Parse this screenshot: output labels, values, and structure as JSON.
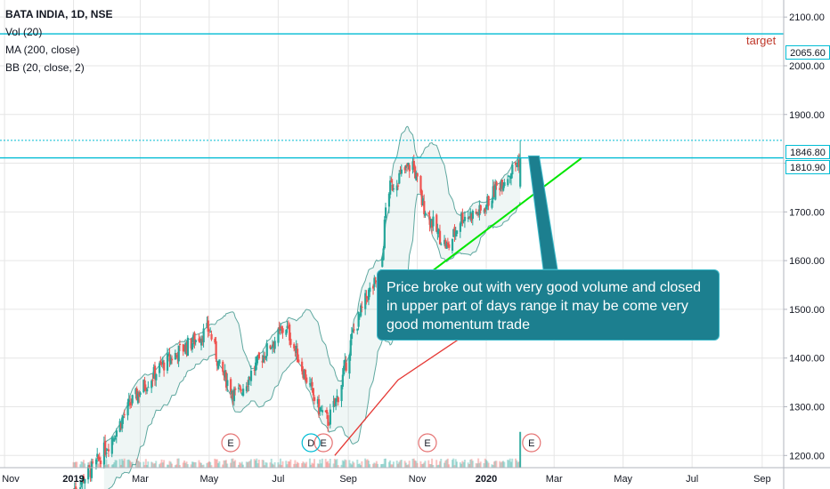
{
  "legend": {
    "title": "BATA INDIA, 1D, NSE",
    "lines": [
      "Vol (20)",
      "MA (200, close)",
      "BB (20, close, 2)"
    ]
  },
  "annotations": {
    "callout": "Price broke out with very good volume and closed in upper part of days range it may be come very good momentum trade",
    "target_label": "target",
    "earnings_marker": "E",
    "dividend_marker": "D"
  },
  "price_tags": {
    "target": "2065.60",
    "high": "1846.80",
    "breakout": "1810.90"
  },
  "colors": {
    "up": "#26a69a",
    "down": "#ef5350",
    "ma": "#e53935",
    "level": "#00bcd4",
    "trendline": "#00e600",
    "bb": "#5fa8a0",
    "earnings": "#e57373",
    "grid": "#e6e6e6"
  },
  "chart_data": {
    "type": "candlestick",
    "title": "BATA INDIA, 1D, NSE",
    "x_ticks": [
      "Nov",
      "2019",
      "Mar",
      "May",
      "Jul",
      "Sep",
      "Nov",
      "2020",
      "Mar",
      "May",
      "Jul",
      "Sep"
    ],
    "y_ticks": [
      "1200.00",
      "1300.00",
      "1400.00",
      "1500.00",
      "1600.00",
      "1700.00",
      "1800.00",
      "1900.00",
      "2000.00",
      "2100.00"
    ],
    "ylim": [
      1175,
      2135
    ],
    "xlim": [
      "2018-10-28",
      "2020-09-20"
    ],
    "horizontal_levels": [
      2065.6,
      1846.8,
      1810.9
    ],
    "close_path": [
      [
        "2019-01-01",
        1130
      ],
      [
        "2019-01-20",
        1180
      ],
      [
        "2019-02-05",
        1240
      ],
      [
        "2019-02-20",
        1305
      ],
      [
        "2019-03-05",
        1345
      ],
      [
        "2019-03-20",
        1385
      ],
      [
        "2019-04-05",
        1415
      ],
      [
        "2019-04-20",
        1440
      ],
      [
        "2019-05-01",
        1460
      ],
      [
        "2019-05-10",
        1380
      ],
      [
        "2019-05-25",
        1320
      ],
      [
        "2019-06-10",
        1380
      ],
      [
        "2019-06-25",
        1430
      ],
      [
        "2019-07-08",
        1465
      ],
      [
        "2019-07-22",
        1380
      ],
      [
        "2019-08-05",
        1300
      ],
      [
        "2019-08-14",
        1270
      ],
      [
        "2019-08-24",
        1330
      ],
      [
        "2019-09-05",
        1450
      ],
      [
        "2019-09-18",
        1530
      ],
      [
        "2019-09-30",
        1570
      ],
      [
        "2019-10-05",
        1740
      ],
      [
        "2019-10-15",
        1770
      ],
      [
        "2019-10-28",
        1800
      ],
      [
        "2019-11-05",
        1720
      ],
      [
        "2019-11-18",
        1660
      ],
      [
        "2019-11-28",
        1625
      ],
      [
        "2019-12-10",
        1690
      ],
      [
        "2019-12-28",
        1700
      ],
      [
        "2020-01-10",
        1750
      ],
      [
        "2020-01-25",
        1790
      ],
      [
        "2020-02-01",
        1811
      ]
    ],
    "ma200": [
      [
        "2019-08-20",
        1200
      ],
      [
        "2019-10-15",
        1355
      ],
      [
        "2019-12-15",
        1450
      ],
      [
        "2020-02-01",
        1520
      ]
    ],
    "trendline": [
      [
        "2019-11-15",
        1580
      ],
      [
        "2020-03-25",
        1810
      ]
    ],
    "volume": {
      "ylim": [
        0,
        2000000
      ],
      "breakout_date": "2020-02-01",
      "breakout_volume": 1150000
    },
    "earnings_dates": [
      "2019-05-20",
      "2019-08-10",
      "2019-11-10",
      "2020-02-10"
    ],
    "dividend_dates": [
      "2019-07-30"
    ],
    "seed": 7
  }
}
